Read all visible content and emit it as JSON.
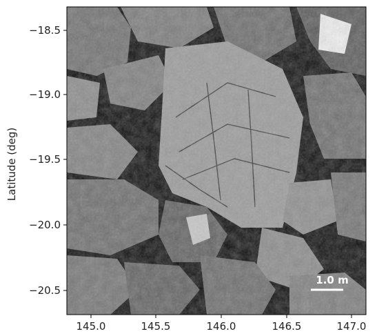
{
  "image": {
    "description_icon": "asteroid-surface-boulder-image"
  },
  "axes": {
    "ylabel": "Latitude (deg)",
    "x_ticks": [
      "145.0",
      "145.5",
      "146.0",
      "146.5",
      "147.0"
    ],
    "y_ticks": [
      "−18.5",
      "−19.0",
      "−19.5",
      "−20.0",
      "−20.5"
    ]
  },
  "scale_bar": {
    "label": "1.0 m"
  },
  "colors": {
    "background": "#ffffff",
    "frame": "#000000",
    "scale_bar": "#ffffff"
  }
}
